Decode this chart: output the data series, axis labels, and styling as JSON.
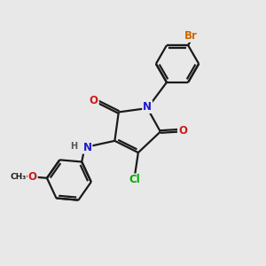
{
  "bg_color": "#e8e8e8",
  "bond_color": "#1a1a1a",
  "bond_width": 1.6,
  "atom_colors": {
    "N": "#1a1acc",
    "O": "#cc1a1a",
    "Cl": "#00aa00",
    "Br": "#cc6600",
    "H": "#555555",
    "C": "#1a1a1a"
  },
  "font_size_atom": 8.5,
  "font_size_small": 7.0
}
